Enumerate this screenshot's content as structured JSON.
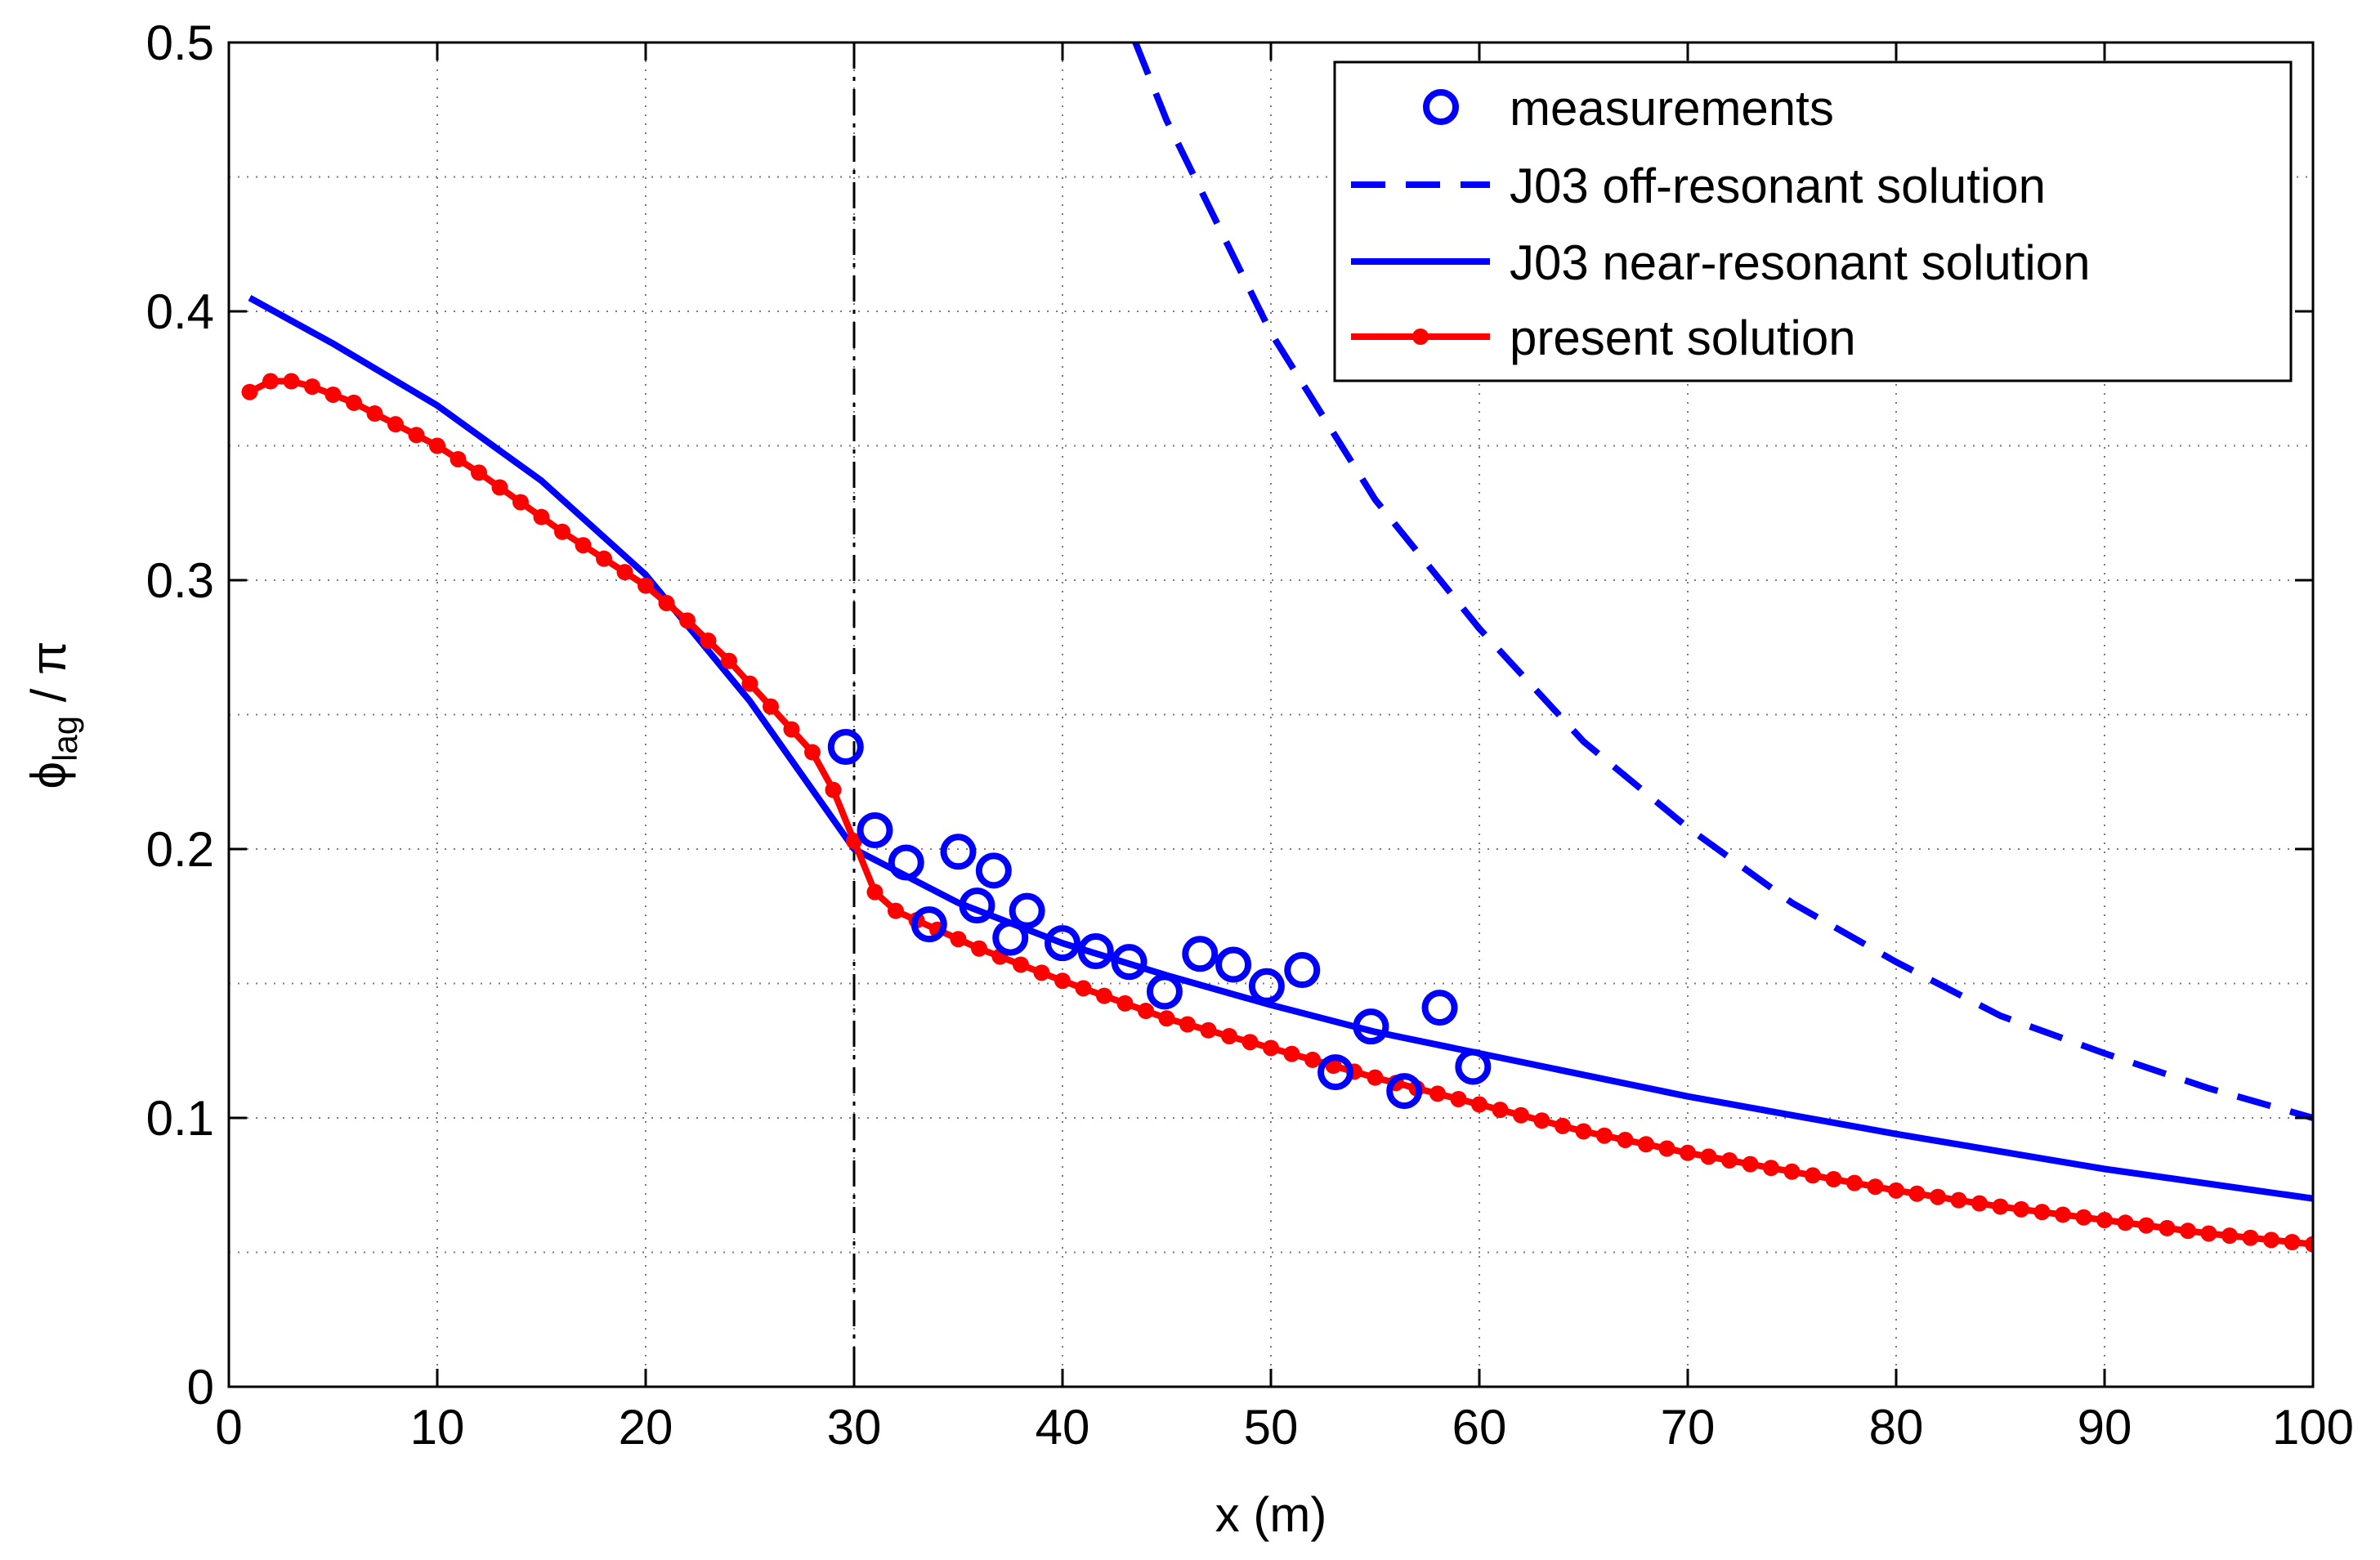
{
  "chart_data": {
    "type": "line",
    "title": "",
    "xlabel": "x (m)",
    "ylabel": {
      "base": "ϕ",
      "sub": "lag",
      "rest": " / π"
    },
    "xlim": [
      0,
      100
    ],
    "ylim": [
      0,
      0.5
    ],
    "xticks": [
      0,
      10,
      20,
      30,
      40,
      50,
      60,
      70,
      80,
      90,
      100
    ],
    "yticks": [
      0,
      0.1,
      0.2,
      0.3,
      0.4,
      0.5
    ],
    "ytick_labels": [
      "0",
      "0.1",
      "0.2",
      "0.3",
      "0.4",
      "0.5"
    ],
    "grid": true,
    "legend_position": "top-right",
    "vertical_marker_x": 30,
    "series": [
      {
        "name": "measurements",
        "style": "markers-circle",
        "color": "#0000ff",
        "x": [
          29.6,
          31.0,
          32.5,
          33.6,
          35.0,
          35.9,
          36.7,
          37.5,
          38.3,
          40.0,
          41.6,
          43.2,
          44.9,
          46.6,
          48.2,
          49.8,
          51.5,
          53.1,
          54.8,
          56.4,
          58.1,
          59.7
        ],
        "y": [
          0.238,
          0.207,
          0.195,
          0.172,
          0.199,
          0.179,
          0.192,
          0.167,
          0.177,
          0.165,
          0.162,
          0.158,
          0.147,
          0.161,
          0.157,
          0.149,
          0.155,
          0.117,
          0.134,
          0.11,
          0.141,
          0.119
        ]
      },
      {
        "name": "J03 off-resonant solution",
        "style": "dashed",
        "color": "#0000ff",
        "x": [
          43.5,
          45,
          50,
          55,
          60,
          65,
          70,
          75,
          80,
          85,
          90,
          95,
          100
        ],
        "y": [
          0.5,
          0.471,
          0.392,
          0.33,
          0.282,
          0.24,
          0.208,
          0.18,
          0.158,
          0.138,
          0.124,
          0.111,
          0.1
        ]
      },
      {
        "name": "J03 near-resonant solution",
        "style": "solid",
        "color": "#0000ff",
        "x": [
          1,
          5,
          10,
          15,
          20,
          25,
          28,
          30,
          35,
          40,
          45,
          50,
          55,
          60,
          70,
          80,
          90,
          100
        ],
        "y": [
          0.405,
          0.388,
          0.365,
          0.337,
          0.302,
          0.255,
          0.222,
          0.2,
          0.18,
          0.165,
          0.153,
          0.142,
          0.132,
          0.124,
          0.108,
          0.094,
          0.081,
          0.07
        ]
      },
      {
        "name": "present solution",
        "style": "line-dots",
        "color": "#ff0000",
        "x": [
          1,
          2,
          3,
          4,
          5,
          6,
          8,
          10,
          12,
          14,
          16,
          18,
          20,
          22,
          24,
          26,
          28,
          29,
          30,
          31,
          32,
          34,
          36,
          38,
          40,
          45,
          50,
          55,
          60,
          65,
          70,
          75,
          80,
          85,
          90,
          95,
          100
        ],
        "y": [
          0.37,
          0.374,
          0.374,
          0.372,
          0.369,
          0.366,
          0.358,
          0.35,
          0.34,
          0.329,
          0.318,
          0.308,
          0.298,
          0.285,
          0.27,
          0.253,
          0.236,
          0.222,
          0.203,
          0.184,
          0.177,
          0.17,
          0.163,
          0.157,
          0.151,
          0.137,
          0.126,
          0.115,
          0.105,
          0.095,
          0.087,
          0.08,
          0.073,
          0.067,
          0.062,
          0.057,
          0.053
        ]
      }
    ]
  }
}
